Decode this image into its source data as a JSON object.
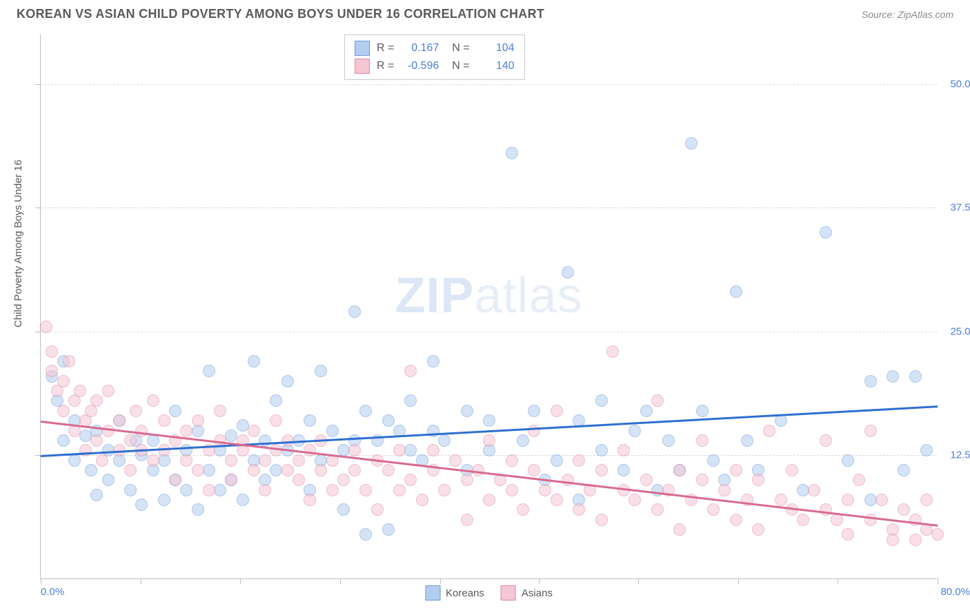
{
  "header": {
    "title": "KOREAN VS ASIAN CHILD POVERTY AMONG BOYS UNDER 16 CORRELATION CHART",
    "source_label": "Source: ZipAtlas.com"
  },
  "watermark": {
    "bold": "ZIP",
    "light": "atlas"
  },
  "chart": {
    "type": "scatter",
    "ylabel": "Child Poverty Among Boys Under 16",
    "xlim": [
      0,
      80
    ],
    "ylim": [
      0,
      55
    ],
    "x_tick_positions": [
      0,
      8.9,
      17.8,
      26.7,
      35.6,
      44.4,
      53.3,
      62.2,
      71.1,
      80
    ],
    "y_tick_positions": [
      12.5,
      25.0,
      37.5,
      50.0
    ],
    "y_tick_labels": [
      "12.5%",
      "25.0%",
      "37.5%",
      "50.0%"
    ],
    "x_start_label": "0.0%",
    "x_end_label": "80.0%",
    "grid_color": "#d8d8d8",
    "background_color": "#ffffff",
    "axis_label_color": "#4a7fd8",
    "point_radius": 9,
    "point_opacity": 0.55,
    "trend_line_width": 2.5,
    "series": [
      {
        "name": "Koreans",
        "fill": "#b3cdf0",
        "stroke": "#6a9bd8",
        "trend_color": "#2e6fd0",
        "R": "0.167",
        "N": "104",
        "trend": {
          "x1": 0,
          "y1": 12.5,
          "x2": 80,
          "y2": 17.5
        },
        "points": [
          [
            1,
            20.5
          ],
          [
            1.5,
            18
          ],
          [
            2,
            22
          ],
          [
            2,
            14
          ],
          [
            3,
            16
          ],
          [
            3,
            12
          ],
          [
            4,
            14.5
          ],
          [
            4.5,
            11
          ],
          [
            5,
            15
          ],
          [
            5,
            8.5
          ],
          [
            6,
            13
          ],
          [
            6,
            10
          ],
          [
            7,
            16
          ],
          [
            7,
            12
          ],
          [
            8,
            9
          ],
          [
            8.5,
            14
          ],
          [
            9,
            12.5
          ],
          [
            9,
            7.5
          ],
          [
            10,
            11
          ],
          [
            10,
            14
          ],
          [
            11,
            8
          ],
          [
            11,
            12
          ],
          [
            12,
            17
          ],
          [
            12,
            10
          ],
          [
            13,
            9
          ],
          [
            13,
            13
          ],
          [
            14,
            15
          ],
          [
            14,
            7
          ],
          [
            15,
            21
          ],
          [
            15,
            11
          ],
          [
            16,
            13
          ],
          [
            16,
            9
          ],
          [
            17,
            10
          ],
          [
            17,
            14.5
          ],
          [
            18,
            15.5
          ],
          [
            18,
            8
          ],
          [
            19,
            12
          ],
          [
            19,
            22
          ],
          [
            20,
            14
          ],
          [
            20,
            10
          ],
          [
            21,
            18
          ],
          [
            21,
            11
          ],
          [
            22,
            13
          ],
          [
            22,
            20
          ],
          [
            23,
            14
          ],
          [
            24,
            9
          ],
          [
            24,
            16
          ],
          [
            25,
            21
          ],
          [
            25,
            12
          ],
          [
            26,
            15
          ],
          [
            27,
            13
          ],
          [
            27,
            7
          ],
          [
            28,
            14
          ],
          [
            28,
            27
          ],
          [
            29,
            17
          ],
          [
            29,
            4.5
          ],
          [
            30,
            14
          ],
          [
            31,
            16
          ],
          [
            31,
            5
          ],
          [
            32,
            15
          ],
          [
            33,
            13
          ],
          [
            33,
            18
          ],
          [
            34,
            12
          ],
          [
            35,
            15
          ],
          [
            35,
            22
          ],
          [
            36,
            14
          ],
          [
            38,
            17
          ],
          [
            38,
            11
          ],
          [
            40,
            13
          ],
          [
            40,
            16
          ],
          [
            42,
            43
          ],
          [
            43,
            14
          ],
          [
            44,
            17
          ],
          [
            45,
            10
          ],
          [
            46,
            12
          ],
          [
            47,
            31
          ],
          [
            48,
            16
          ],
          [
            48,
            8
          ],
          [
            50,
            18
          ],
          [
            50,
            13
          ],
          [
            52,
            11
          ],
          [
            53,
            15
          ],
          [
            54,
            17
          ],
          [
            55,
            9
          ],
          [
            56,
            14
          ],
          [
            57,
            11
          ],
          [
            58,
            44
          ],
          [
            59,
            17
          ],
          [
            60,
            12
          ],
          [
            61,
            10
          ],
          [
            62,
            29
          ],
          [
            63,
            14
          ],
          [
            64,
            11
          ],
          [
            66,
            16
          ],
          [
            68,
            9
          ],
          [
            70,
            35
          ],
          [
            72,
            12
          ],
          [
            74,
            20
          ],
          [
            74,
            8
          ],
          [
            76,
            20.5
          ],
          [
            77,
            11
          ],
          [
            78,
            20.5
          ],
          [
            79,
            13
          ]
        ]
      },
      {
        "name": "Asians",
        "fill": "#f5c6d4",
        "stroke": "#e08aa4",
        "trend_color": "#d86a8f",
        "R": "-0.596",
        "N": "140",
        "trend": {
          "x1": 0,
          "y1": 16.0,
          "x2": 80,
          "y2": 5.5
        },
        "points": [
          [
            0.5,
            25.5
          ],
          [
            1,
            23
          ],
          [
            1,
            21
          ],
          [
            1.5,
            19
          ],
          [
            2,
            20
          ],
          [
            2,
            17
          ],
          [
            2.5,
            22
          ],
          [
            3,
            18
          ],
          [
            3,
            15
          ],
          [
            3.5,
            19
          ],
          [
            4,
            16
          ],
          [
            4,
            13
          ],
          [
            4.5,
            17
          ],
          [
            5,
            14
          ],
          [
            5,
            18
          ],
          [
            5.5,
            12
          ],
          [
            6,
            15
          ],
          [
            6,
            19
          ],
          [
            7,
            13
          ],
          [
            7,
            16
          ],
          [
            8,
            14
          ],
          [
            8,
            11
          ],
          [
            8.5,
            17
          ],
          [
            9,
            13
          ],
          [
            9,
            15
          ],
          [
            10,
            18
          ],
          [
            10,
            12
          ],
          [
            11,
            13
          ],
          [
            11,
            16
          ],
          [
            12,
            14
          ],
          [
            12,
            10
          ],
          [
            13,
            15
          ],
          [
            13,
            12
          ],
          [
            14,
            11
          ],
          [
            14,
            16
          ],
          [
            15,
            13
          ],
          [
            15,
            9
          ],
          [
            16,
            14
          ],
          [
            16,
            17
          ],
          [
            17,
            12
          ],
          [
            17,
            10
          ],
          [
            18,
            14
          ],
          [
            18,
            13
          ],
          [
            19,
            11
          ],
          [
            19,
            15
          ],
          [
            20,
            12
          ],
          [
            20,
            9
          ],
          [
            21,
            13
          ],
          [
            21,
            16
          ],
          [
            22,
            11
          ],
          [
            22,
            14
          ],
          [
            23,
            10
          ],
          [
            23,
            12
          ],
          [
            24,
            13
          ],
          [
            24,
            8
          ],
          [
            25,
            11
          ],
          [
            25,
            14
          ],
          [
            26,
            12
          ],
          [
            26,
            9
          ],
          [
            27,
            10
          ],
          [
            28,
            13
          ],
          [
            28,
            11
          ],
          [
            29,
            9
          ],
          [
            30,
            12
          ],
          [
            30,
            7
          ],
          [
            31,
            11
          ],
          [
            32,
            13
          ],
          [
            32,
            9
          ],
          [
            33,
            10
          ],
          [
            33,
            21
          ],
          [
            34,
            8
          ],
          [
            35,
            11
          ],
          [
            35,
            13
          ],
          [
            36,
            9
          ],
          [
            37,
            12
          ],
          [
            38,
            10
          ],
          [
            38,
            6
          ],
          [
            39,
            11
          ],
          [
            40,
            8
          ],
          [
            40,
            14
          ],
          [
            41,
            10
          ],
          [
            42,
            9
          ],
          [
            42,
            12
          ],
          [
            43,
            7
          ],
          [
            44,
            11
          ],
          [
            44,
            15
          ],
          [
            45,
            9
          ],
          [
            46,
            8
          ],
          [
            46,
            17
          ],
          [
            47,
            10
          ],
          [
            48,
            7
          ],
          [
            48,
            12
          ],
          [
            49,
            9
          ],
          [
            50,
            11
          ],
          [
            50,
            6
          ],
          [
            51,
            23
          ],
          [
            52,
            9
          ],
          [
            52,
            13
          ],
          [
            53,
            8
          ],
          [
            54,
            10
          ],
          [
            55,
            7
          ],
          [
            55,
            18
          ],
          [
            56,
            9
          ],
          [
            57,
            11
          ],
          [
            57,
            5
          ],
          [
            58,
            8
          ],
          [
            59,
            10
          ],
          [
            59,
            14
          ],
          [
            60,
            7
          ],
          [
            61,
            9
          ],
          [
            62,
            6
          ],
          [
            62,
            11
          ],
          [
            63,
            8
          ],
          [
            64,
            10
          ],
          [
            64,
            5
          ],
          [
            65,
            15
          ],
          [
            66,
            8
          ],
          [
            67,
            7
          ],
          [
            67,
            11
          ],
          [
            68,
            6
          ],
          [
            69,
            9
          ],
          [
            70,
            7
          ],
          [
            70,
            14
          ],
          [
            71,
            6
          ],
          [
            72,
            8
          ],
          [
            72,
            4.5
          ],
          [
            73,
            10
          ],
          [
            74,
            6
          ],
          [
            74,
            15
          ],
          [
            75,
            8
          ],
          [
            76,
            5
          ],
          [
            76,
            4
          ],
          [
            77,
            7
          ],
          [
            78,
            6
          ],
          [
            78,
            4
          ],
          [
            79,
            5
          ],
          [
            79,
            8
          ],
          [
            80,
            4.5
          ]
        ]
      }
    ],
    "bottom_legend": [
      {
        "label": "Koreans",
        "fill": "#b3cdf0",
        "stroke": "#6a9bd8"
      },
      {
        "label": "Asians",
        "fill": "#f5c6d4",
        "stroke": "#e08aa4"
      }
    ]
  }
}
